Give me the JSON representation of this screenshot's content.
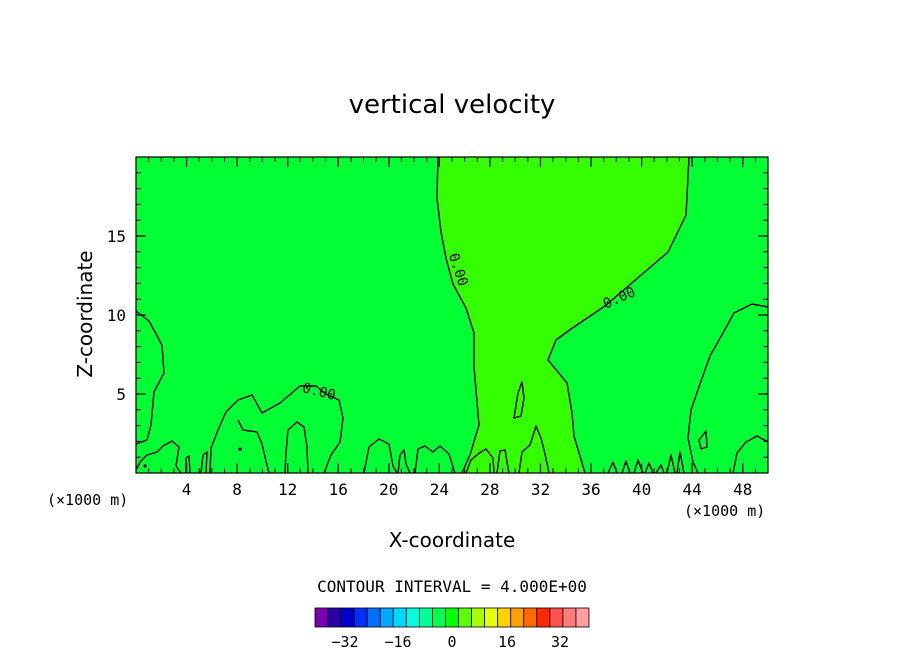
{
  "chart_data": {
    "type": "heatmap",
    "title": "vertical velocity",
    "xlabel": "X-coordinate",
    "ylabel": "Z-coordinate",
    "x_unit_left": "(×1000 m)",
    "x_unit_right": "(×1000 m)",
    "xlim": [
      0,
      50
    ],
    "ylim": [
      0,
      20
    ],
    "xticks": [
      "4",
      "8",
      "12",
      "16",
      "20",
      "24",
      "28",
      "32",
      "36",
      "40",
      "44",
      "48"
    ],
    "yticks": [
      "5",
      "10",
      "15"
    ],
    "contour_labels": [
      "0.00",
      "0.00",
      "0.00"
    ],
    "contour_interval_text": "CONTOUR INTERVAL = 4.000E+00",
    "colorbar": {
      "tick_labels": [
        "−32",
        "−16",
        "0",
        "16",
        "32"
      ],
      "colors": [
        "#7a00b5",
        "#2a00a8",
        "#0000cc",
        "#0030ff",
        "#0070ff",
        "#00a8ff",
        "#00d8ff",
        "#00ffe0",
        "#00ff9a",
        "#00ff50",
        "#00ff00",
        "#5cff00",
        "#a8ff00",
        "#e8ff00",
        "#ffd200",
        "#ffa000",
        "#ff6a00",
        "#ff2a00",
        "#ff5050",
        "#ff7a7a",
        "#ff9e9e"
      ]
    },
    "colors": {
      "background_field": "#00ff33",
      "updraft_field": "#33ff00",
      "contour": "#000000"
    },
    "grid": false
  }
}
